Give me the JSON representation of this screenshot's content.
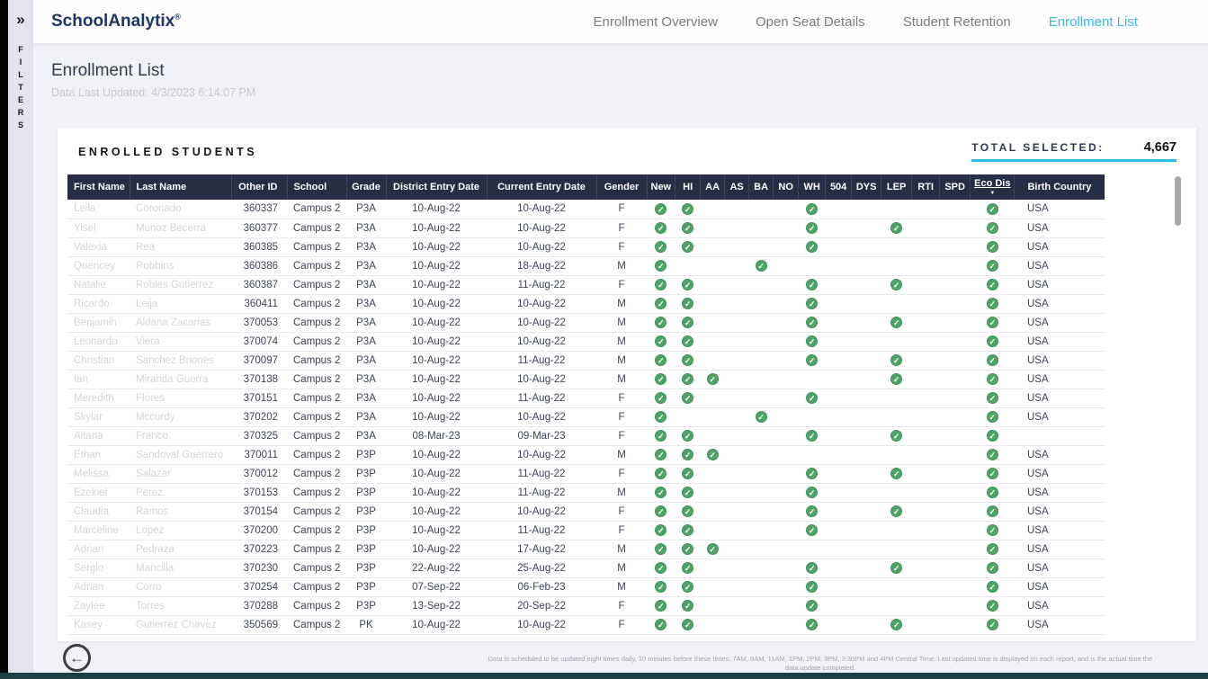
{
  "sidebar": {
    "expand_icon": "»",
    "filters_label": "FILTERS"
  },
  "topbar": {
    "brand": "SchoolAnalytix",
    "brand_mark": "®",
    "tabs": [
      {
        "label": "Enrollment Overview",
        "active": false
      },
      {
        "label": "Open Seat Details",
        "active": false
      },
      {
        "label": "Student Retention",
        "active": false
      },
      {
        "label": "Enrollment List",
        "active": true
      }
    ]
  },
  "page": {
    "title": "Enrollment List",
    "last_updated": "Data Last Updated: 4/3/2023 6:14:07 PM"
  },
  "table": {
    "section_title": "ENROLLED STUDENTS",
    "total_selected_label": "TOTAL SELECTED:",
    "total_selected_value": "4,667",
    "columns": [
      "First Name",
      "Last Name",
      "Other ID",
      "School",
      "Grade",
      "District Entry Date",
      "Current Entry Date",
      "Gender",
      "New",
      "HI",
      "AA",
      "AS",
      "BA",
      "NO",
      "WH",
      "504",
      "DYS",
      "LEP",
      "RTI",
      "SPD",
      "Eco Dis",
      "Birth Country"
    ],
    "flag_columns": [
      "New",
      "HI",
      "AA",
      "AS",
      "BA",
      "NO",
      "WH",
      "504",
      "DYS",
      "LEP",
      "RTI",
      "SPD",
      "Eco Dis"
    ],
    "sort_column": "Eco Dis",
    "sort_direction": "desc",
    "check_icon": "✓",
    "rows": [
      {
        "first": "Leila",
        "last": "Coronado",
        "other_id": "360337",
        "school": "Campus 2",
        "grade": "P3A",
        "district_entry": "10-Aug-22",
        "current_entry": "10-Aug-22",
        "gender": "F",
        "flags": [
          1,
          1,
          0,
          0,
          0,
          0,
          1,
          0,
          0,
          0,
          0,
          0,
          1
        ],
        "birth_country": "USA"
      },
      {
        "first": "Yisel",
        "last": "Munoz Becerra",
        "other_id": "360377",
        "school": "Campus 2",
        "grade": "P3A",
        "district_entry": "10-Aug-22",
        "current_entry": "10-Aug-22",
        "gender": "F",
        "flags": [
          1,
          1,
          0,
          0,
          0,
          0,
          1,
          0,
          0,
          1,
          0,
          0,
          1
        ],
        "birth_country": "USA"
      },
      {
        "first": "Valexia",
        "last": "Rea",
        "other_id": "360385",
        "school": "Campus 2",
        "grade": "P3A",
        "district_entry": "10-Aug-22",
        "current_entry": "10-Aug-22",
        "gender": "F",
        "flags": [
          1,
          1,
          0,
          0,
          0,
          0,
          1,
          0,
          0,
          0,
          0,
          0,
          1
        ],
        "birth_country": "USA"
      },
      {
        "first": "Quencey",
        "last": "Robbins",
        "other_id": "360386",
        "school": "Campus 2",
        "grade": "P3A",
        "district_entry": "10-Aug-22",
        "current_entry": "18-Aug-22",
        "gender": "M",
        "flags": [
          1,
          0,
          0,
          0,
          1,
          0,
          0,
          0,
          0,
          0,
          0,
          0,
          1
        ],
        "birth_country": "USA"
      },
      {
        "first": "Natalie",
        "last": "Robles Gutierrez",
        "other_id": "360387",
        "school": "Campus 2",
        "grade": "P3A",
        "district_entry": "10-Aug-22",
        "current_entry": "11-Aug-22",
        "gender": "F",
        "flags": [
          1,
          1,
          0,
          0,
          0,
          0,
          1,
          0,
          0,
          1,
          0,
          0,
          1
        ],
        "birth_country": "USA"
      },
      {
        "first": "Ricardo",
        "last": "Leija",
        "other_id": "360411",
        "school": "Campus 2",
        "grade": "P3A",
        "district_entry": "10-Aug-22",
        "current_entry": "10-Aug-22",
        "gender": "M",
        "flags": [
          1,
          1,
          0,
          0,
          0,
          0,
          1,
          0,
          0,
          0,
          0,
          0,
          1
        ],
        "birth_country": "USA"
      },
      {
        "first": "Benjamin",
        "last": "Aldana Zacarias",
        "other_id": "370053",
        "school": "Campus 2",
        "grade": "P3A",
        "district_entry": "10-Aug-22",
        "current_entry": "10-Aug-22",
        "gender": "M",
        "flags": [
          1,
          1,
          0,
          0,
          0,
          0,
          1,
          0,
          0,
          1,
          0,
          0,
          1
        ],
        "birth_country": "USA"
      },
      {
        "first": "Leonardo",
        "last": "Viera",
        "other_id": "370074",
        "school": "Campus 2",
        "grade": "P3A",
        "district_entry": "10-Aug-22",
        "current_entry": "10-Aug-22",
        "gender": "M",
        "flags": [
          1,
          1,
          0,
          0,
          0,
          0,
          1,
          0,
          0,
          0,
          0,
          0,
          1
        ],
        "birth_country": "USA"
      },
      {
        "first": "Christian",
        "last": "Sanchez Briones",
        "other_id": "370097",
        "school": "Campus 2",
        "grade": "P3A",
        "district_entry": "10-Aug-22",
        "current_entry": "11-Aug-22",
        "gender": "M",
        "flags": [
          1,
          1,
          0,
          0,
          0,
          0,
          1,
          0,
          0,
          1,
          0,
          0,
          1
        ],
        "birth_country": "USA"
      },
      {
        "first": "Ian",
        "last": "Miranda Guerra",
        "other_id": "370138",
        "school": "Campus 2",
        "grade": "P3A",
        "district_entry": "10-Aug-22",
        "current_entry": "10-Aug-22",
        "gender": "M",
        "flags": [
          1,
          1,
          1,
          0,
          0,
          0,
          0,
          0,
          0,
          1,
          0,
          0,
          1
        ],
        "birth_country": "USA"
      },
      {
        "first": "Meredith",
        "last": "Flores",
        "other_id": "370151",
        "school": "Campus 2",
        "grade": "P3A",
        "district_entry": "10-Aug-22",
        "current_entry": "11-Aug-22",
        "gender": "F",
        "flags": [
          1,
          1,
          0,
          0,
          0,
          0,
          1,
          0,
          0,
          0,
          0,
          0,
          1
        ],
        "birth_country": "USA"
      },
      {
        "first": "Skylar",
        "last": "Mccurdy",
        "other_id": "370202",
        "school": "Campus 2",
        "grade": "P3A",
        "district_entry": "10-Aug-22",
        "current_entry": "10-Aug-22",
        "gender": "F",
        "flags": [
          1,
          0,
          0,
          0,
          1,
          0,
          0,
          0,
          0,
          0,
          0,
          0,
          1
        ],
        "birth_country": "USA"
      },
      {
        "first": "Aitana",
        "last": "Franco",
        "other_id": "370325",
        "school": "Campus 2",
        "grade": "P3A",
        "district_entry": "08-Mar-23",
        "current_entry": "09-Mar-23",
        "gender": "F",
        "flags": [
          1,
          1,
          0,
          0,
          0,
          0,
          1,
          0,
          0,
          1,
          0,
          0,
          1
        ],
        "birth_country": ""
      },
      {
        "first": "Ethan",
        "last": "Sandoval Guerrero",
        "other_id": "370011",
        "school": "Campus 2",
        "grade": "P3P",
        "district_entry": "10-Aug-22",
        "current_entry": "10-Aug-22",
        "gender": "M",
        "flags": [
          1,
          1,
          1,
          0,
          0,
          0,
          0,
          0,
          0,
          0,
          0,
          0,
          1
        ],
        "birth_country": "USA"
      },
      {
        "first": "Melissa",
        "last": "Salazar",
        "other_id": "370012",
        "school": "Campus 2",
        "grade": "P3P",
        "district_entry": "10-Aug-22",
        "current_entry": "11-Aug-22",
        "gender": "F",
        "flags": [
          1,
          1,
          0,
          0,
          0,
          0,
          1,
          0,
          0,
          1,
          0,
          0,
          1
        ],
        "birth_country": "USA"
      },
      {
        "first": "Ezekiel",
        "last": "Perez",
        "other_id": "370153",
        "school": "Campus 2",
        "grade": "P3P",
        "district_entry": "10-Aug-22",
        "current_entry": "11-Aug-22",
        "gender": "M",
        "flags": [
          1,
          1,
          0,
          0,
          0,
          0,
          1,
          0,
          0,
          0,
          0,
          0,
          1
        ],
        "birth_country": "USA"
      },
      {
        "first": "Claudia",
        "last": "Ramos",
        "other_id": "370154",
        "school": "Campus 2",
        "grade": "P3P",
        "district_entry": "10-Aug-22",
        "current_entry": "10-Aug-22",
        "gender": "F",
        "flags": [
          1,
          1,
          0,
          0,
          0,
          0,
          1,
          0,
          0,
          1,
          0,
          0,
          1
        ],
        "birth_country": "USA"
      },
      {
        "first": "Marceline",
        "last": "Lopez",
        "other_id": "370200",
        "school": "Campus 2",
        "grade": "P3P",
        "district_entry": "10-Aug-22",
        "current_entry": "11-Aug-22",
        "gender": "F",
        "flags": [
          1,
          1,
          0,
          0,
          0,
          0,
          1,
          0,
          0,
          0,
          0,
          0,
          1
        ],
        "birth_country": "USA"
      },
      {
        "first": "Adrian",
        "last": "Pedraza",
        "other_id": "370223",
        "school": "Campus 2",
        "grade": "P3P",
        "district_entry": "10-Aug-22",
        "current_entry": "17-Aug-22",
        "gender": "M",
        "flags": [
          1,
          1,
          1,
          0,
          0,
          0,
          0,
          0,
          0,
          0,
          0,
          0,
          1
        ],
        "birth_country": "USA"
      },
      {
        "first": "Sergio",
        "last": "Mancilla",
        "other_id": "370230",
        "school": "Campus 2",
        "grade": "P3P",
        "district_entry": "22-Aug-22",
        "current_entry": "25-Aug-22",
        "gender": "M",
        "flags": [
          1,
          1,
          0,
          0,
          0,
          0,
          1,
          0,
          0,
          1,
          0,
          0,
          1
        ],
        "birth_country": "USA"
      },
      {
        "first": "Adrian",
        "last": "Corro",
        "other_id": "370254",
        "school": "Campus 2",
        "grade": "P3P",
        "district_entry": "07-Sep-22",
        "current_entry": "06-Feb-23",
        "gender": "M",
        "flags": [
          1,
          1,
          0,
          0,
          0,
          0,
          1,
          0,
          0,
          0,
          0,
          0,
          1
        ],
        "birth_country": "USA"
      },
      {
        "first": "Zaylee",
        "last": "Torres",
        "other_id": "370288",
        "school": "Campus 2",
        "grade": "P3P",
        "district_entry": "13-Sep-22",
        "current_entry": "20-Sep-22",
        "gender": "F",
        "flags": [
          1,
          1,
          0,
          0,
          0,
          0,
          1,
          0,
          0,
          0,
          0,
          0,
          1
        ],
        "birth_country": "USA"
      },
      {
        "first": "Kasey",
        "last": "Gutierrez Chavez",
        "other_id": "350569",
        "school": "Campus 2",
        "grade": "PK",
        "district_entry": "10-Aug-22",
        "current_entry": "10-Aug-22",
        "gender": "F",
        "flags": [
          1,
          1,
          0,
          0,
          0,
          0,
          1,
          0,
          0,
          1,
          0,
          0,
          1
        ],
        "birth_country": "USA"
      }
    ]
  },
  "footer": {
    "back_icon": "←",
    "disclaimer": "Data is scheduled to be updated eight times daily, 10 minutes before these times: 7AM, 9AM, 11AM, 1PM, 2PM, 3PM, 3:30PM and 4PM Central Time. Last updated time is displayed on each report, and is the actual time the data update completed."
  },
  "colors": {
    "active_tab": "#3cb8e6",
    "brand_navy": "#1e3763",
    "table_header_bg": "#272d42",
    "check_green": "#4fa368",
    "total_underline": "#2fb9e5",
    "bottom_bar": "#1c3e44"
  }
}
